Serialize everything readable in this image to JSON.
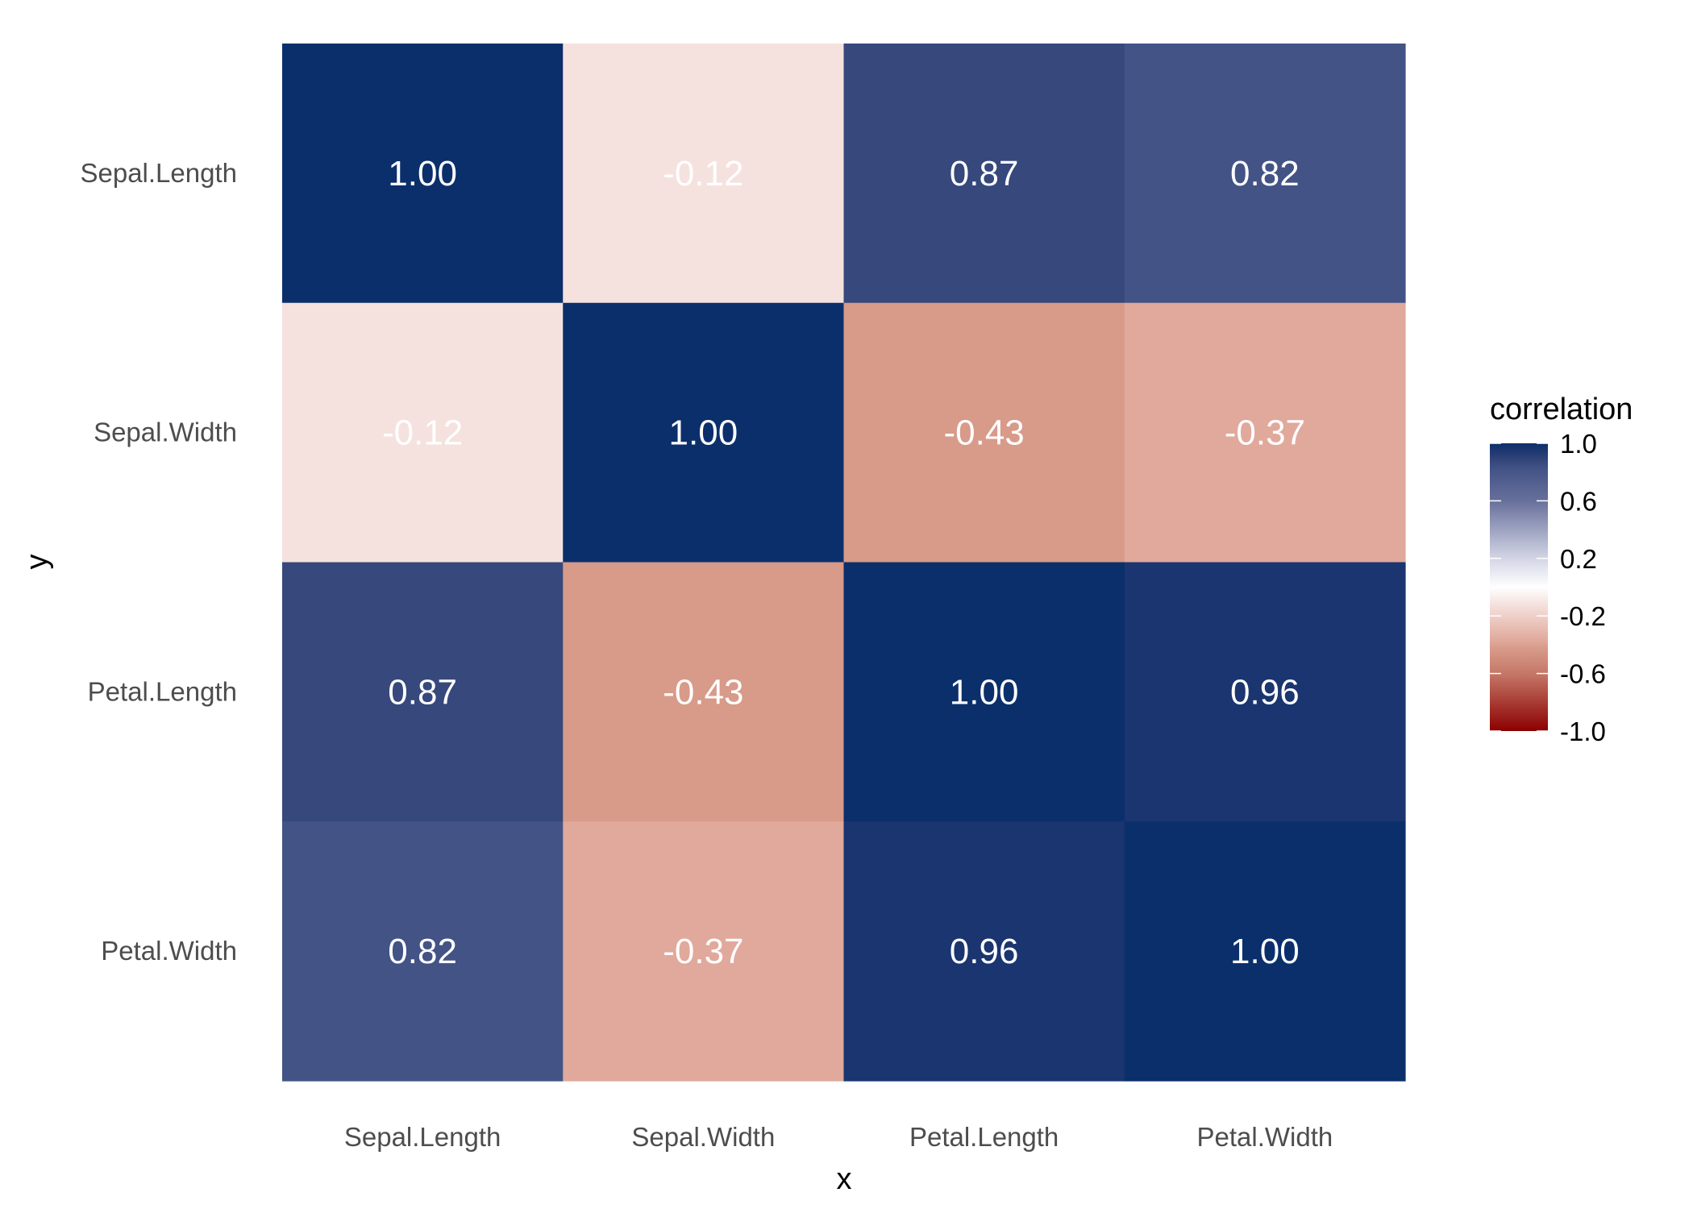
{
  "chart_data": {
    "type": "heatmap",
    "xlabel": "x",
    "ylabel": "y",
    "x_categories": [
      "Sepal.Length",
      "Sepal.Width",
      "Petal.Length",
      "Petal.Width"
    ],
    "y_categories": [
      "Sepal.Length",
      "Sepal.Width",
      "Petal.Length",
      "Petal.Width"
    ],
    "values": [
      [
        1.0,
        -0.12,
        0.87,
        0.82
      ],
      [
        -0.12,
        1.0,
        -0.43,
        -0.37
      ],
      [
        0.87,
        -0.43,
        1.0,
        0.96
      ],
      [
        0.82,
        -0.37,
        0.96,
        1.0
      ]
    ],
    "value_labels": [
      [
        "1.00",
        "-0.12",
        "0.87",
        "0.82"
      ],
      [
        "-0.12",
        "1.00",
        "-0.43",
        "-0.37"
      ],
      [
        "0.87",
        "-0.43",
        "1.00",
        "0.96"
      ],
      [
        "0.82",
        "-0.37",
        "0.96",
        "1.00"
      ]
    ],
    "legend": {
      "title": "correlation",
      "position": "right",
      "range": [
        -1,
        1
      ],
      "ticks": [
        "1.0",
        "0.6",
        "0.2",
        "-0.2",
        "-0.6",
        "-1.0"
      ],
      "tick_values": [
        1.0,
        0.6,
        0.2,
        -0.2,
        -0.6,
        -1.0
      ]
    },
    "colorscale": [
      [
        -1.0,
        "#8b0000"
      ],
      [
        -0.6,
        "#c57868"
      ],
      [
        -0.43,
        "#d89a89"
      ],
      [
        -0.37,
        "#e0a99c"
      ],
      [
        -0.12,
        "#f5e2de"
      ],
      [
        0.0,
        "#ffffff"
      ],
      [
        0.2,
        "#d3d5e5"
      ],
      [
        0.6,
        "#67709b"
      ],
      [
        0.82,
        "#435386"
      ],
      [
        0.87,
        "#36487c"
      ],
      [
        0.96,
        "#1a356f"
      ],
      [
        1.0,
        "#0b2f6b"
      ]
    ],
    "grid": false
  }
}
